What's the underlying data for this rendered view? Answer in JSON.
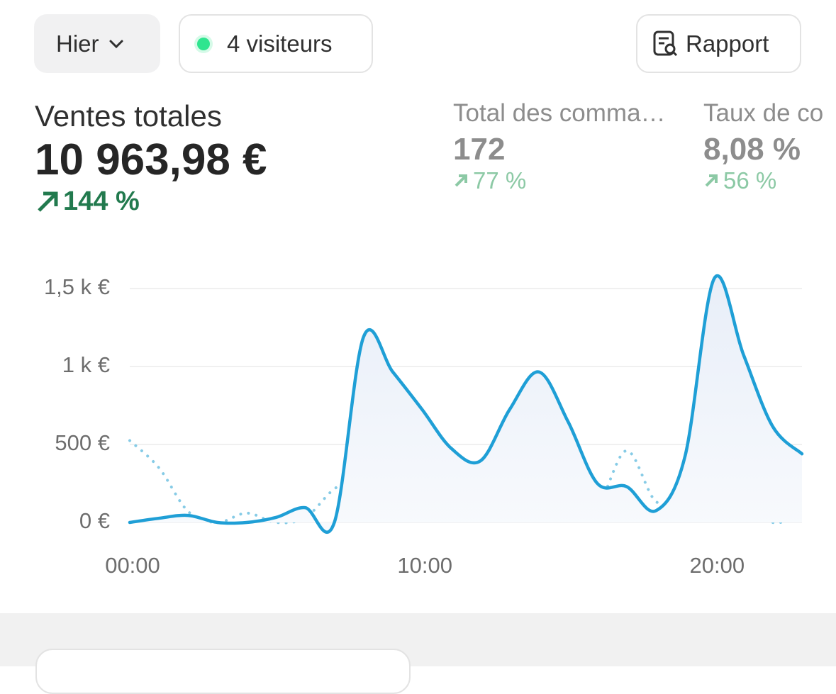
{
  "toolbar": {
    "period": "Hier",
    "visitors": "4 visiteurs",
    "report": "Rapport"
  },
  "metrics": [
    {
      "label": "Ventes totales",
      "value": "10 963,98 €",
      "change": "144 %"
    },
    {
      "label": "Total des comma…",
      "value": "172",
      "change": "77 %"
    },
    {
      "label": "Taux de co",
      "value": "8,08 %",
      "change": "56 %"
    }
  ],
  "chart_data": {
    "type": "line",
    "x": [
      0,
      1,
      2,
      3,
      4,
      5,
      6,
      7,
      8,
      9,
      10,
      11,
      12,
      13,
      14,
      15,
      16,
      17,
      18,
      19,
      20,
      21,
      22,
      23
    ],
    "xlim": [
      0,
      23
    ],
    "xticks": [
      {
        "value": 0,
        "label": "00:00"
      },
      {
        "value": 10,
        "label": "10:00"
      },
      {
        "value": 20,
        "label": "20:00"
      }
    ],
    "ylim": [
      0,
      1500
    ],
    "yticks": [
      {
        "value": 0,
        "label": "0 €"
      },
      {
        "value": 500,
        "label": "500 €"
      },
      {
        "value": 1000,
        "label": "1 k €"
      },
      {
        "value": 1500,
        "label": "1,5 k €"
      }
    ],
    "grid": true,
    "series": [
      {
        "color": "#1f9fd6",
        "style": "solid",
        "values": [
          0,
          27,
          45,
          0,
          0,
          32,
          95,
          0,
          1190,
          965,
          725,
          475,
          395,
          725,
          965,
          645,
          250,
          230,
          75,
          425,
          1565,
          1075,
          615,
          440
        ]
      },
      {
        "color": "#86cbe6",
        "style": "dotted",
        "values": [
          525,
          350,
          70,
          0,
          60,
          0,
          30,
          215,
          305,
          235,
          315,
          140,
          275,
          340,
          100,
          230,
          120,
          460,
          135,
          150,
          125,
          270,
          0,
          95
        ]
      }
    ]
  }
}
